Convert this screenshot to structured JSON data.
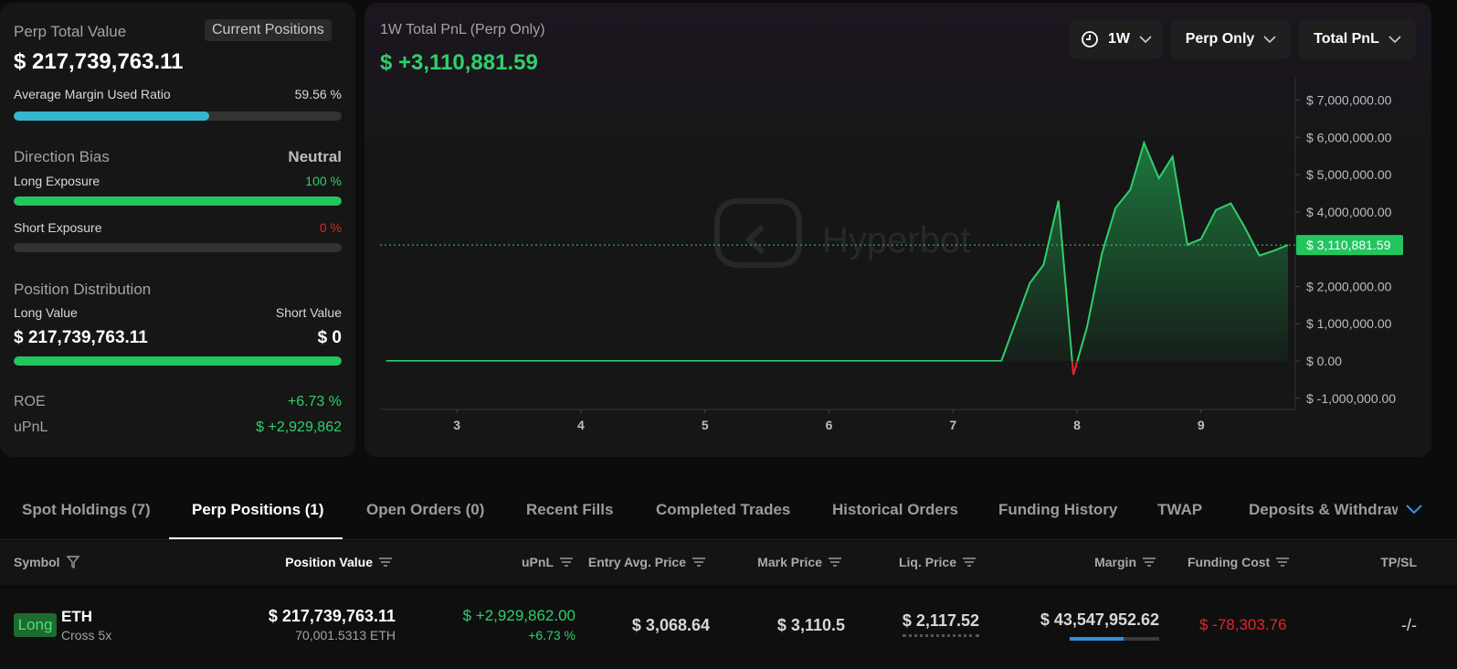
{
  "summary": {
    "title": "Perp Total Value",
    "button": "Current Positions",
    "total_value": "$ 217,739,763.11",
    "margin_ratio": {
      "label": "Average Margin Used Ratio",
      "value": 59.56,
      "value_label": "59.56 %"
    },
    "direction_bias": {
      "label": "Direction Bias",
      "value": "Neutral"
    },
    "long_exposure": {
      "label": "Long Exposure",
      "value": 100,
      "value_label": "100 %"
    },
    "short_exposure": {
      "label": "Short Exposure",
      "value": 0,
      "value_label": "0 %"
    },
    "position_distribution": {
      "title": "Position Distribution",
      "long_label": "Long Value",
      "short_label": "Short Value",
      "long_value": "$ 217,739,763.11",
      "short_value": "$ 0"
    },
    "roe": {
      "label": "ROE",
      "value": "+6.73 %"
    },
    "upnl": {
      "label": "uPnL",
      "value": "$ +2,929,862"
    }
  },
  "chart_data": {
    "type": "line",
    "title": "1W Total PnL (Perp Only)",
    "subtitle": "$ +3,110,881.59",
    "controls": [
      "1W",
      "Perp Only",
      "Total PnL"
    ],
    "watermark": "Hyperbot",
    "x": [
      2.43,
      7.39,
      7.62,
      7.73,
      7.85,
      7.97,
      8.08,
      8.2,
      8.31,
      8.43,
      8.54,
      8.66,
      8.77,
      8.89,
      9.0,
      9.12,
      9.24,
      9.35,
      9.47,
      9.58,
      9.7
    ],
    "values": [
      0,
      0,
      2090000,
      2580000,
      4300000,
      -370000,
      900000,
      2870000,
      4100000,
      4600000,
      5850000,
      4900000,
      5480000,
      3120000,
      3270000,
      4050000,
      4230000,
      3600000,
      2830000,
      2950000,
      3110881.59
    ],
    "color": "#2fcf6c",
    "negative_color": "#e0262b",
    "last_value_label": "$ 3,110,881.59",
    "xlim": [
      2.38,
      9.76
    ],
    "xticks": [
      3,
      4,
      5,
      6,
      7,
      8,
      9
    ],
    "ylim": [
      -1300000,
      7600000
    ],
    "yticks": [
      {
        "value": -1000000,
        "label": "$ -1,000,000.00"
      },
      {
        "value": 0,
        "label": "$ 0.00"
      },
      {
        "value": 1000000,
        "label": "$ 1,000,000.00"
      },
      {
        "value": 2000000,
        "label": "$ 2,000,000.00"
      },
      {
        "value": 3000000,
        "label": "$ 3,000,000.00"
      },
      {
        "value": 4000000,
        "label": "$ 4,000,000.00"
      },
      {
        "value": 5000000,
        "label": "$ 5,000,000.00"
      },
      {
        "value": 6000000,
        "label": "$ 6,000,000.00"
      },
      {
        "value": 7000000,
        "label": "$ 7,000,000.00"
      }
    ]
  },
  "tabs": {
    "items": [
      "Spot Holdings (7)",
      "Perp Positions (1)",
      "Open Orders (0)",
      "Recent Fills",
      "Completed Trades",
      "Historical Orders",
      "Funding History",
      "TWAP",
      "Deposits & Withdrawals"
    ],
    "active": 1
  },
  "table": {
    "columns": [
      "Symbol",
      "Position Value",
      "uPnL",
      "Entry Avg. Price",
      "Mark Price",
      "Liq. Price",
      "Margin",
      "Funding Cost",
      "TP/SL"
    ],
    "rows": [
      {
        "side": "Long",
        "symbol": "ETH",
        "leverage": "Cross 5x",
        "position_value": "$ 217,739,763.11",
        "size": "70,001.5313 ETH",
        "upnl": "$ +2,929,862.00",
        "roe": "+6.73 %",
        "entry_price": "$ 3,068.64",
        "mark_price": "$ 3,110.5",
        "liq_price": "$ 2,117.52",
        "margin": "$ 43,547,952.62",
        "funding_cost": "$ -78,303.76",
        "tp_sl": "-/-"
      }
    ]
  }
}
